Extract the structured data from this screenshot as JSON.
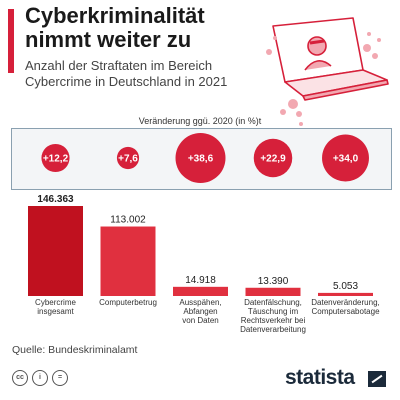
{
  "header": {
    "title_line1": "Cyberkriminalität",
    "title_line2": "nimmt weiter zu",
    "subtitle_line1": "Anzahl der Straftaten im Bereich",
    "subtitle_line2": "Cybercrime in Deutschland in 2021"
  },
  "change_label": "Veränderung ggü. 2020 (in %)t",
  "chart_data": {
    "type": "bar",
    "title": "Cyberkriminalität nimmt weiter zu",
    "subtitle": "Anzahl der Straftaten im Bereich Cybercrime in Deutschland in 2021",
    "categories": [
      [
        "Cybercrime",
        "insgesamt"
      ],
      [
        "Computerbetrug"
      ],
      [
        "Ausspähen,",
        "Abfangen",
        "von Daten"
      ],
      [
        "Datenfälschung,",
        "Täuschung im",
        "Rechtsverkehr bei",
        "Datenverarbeitung"
      ],
      [
        "Datenveränderung,",
        "Computersabotage"
      ]
    ],
    "values": [
      146363,
      113002,
      14918,
      13390,
      5053
    ],
    "value_labels": [
      "146.363",
      "113.002",
      "14.918",
      "13.390",
      "5.053"
    ],
    "changes": [
      12.2,
      7.6,
      38.6,
      22.9,
      34.0
    ],
    "change_labels": [
      "+12,2",
      "+7,6",
      "+38,6",
      "+22,9",
      "+34,0"
    ],
    "colors": {
      "first_bar": "#c0111f",
      "bars": "#e0303f",
      "circles": "#d6203a"
    },
    "ylim": [
      0,
      146363
    ]
  },
  "footer": {
    "source": "Quelle: Bundeskriminalamt",
    "brand": "statista"
  }
}
